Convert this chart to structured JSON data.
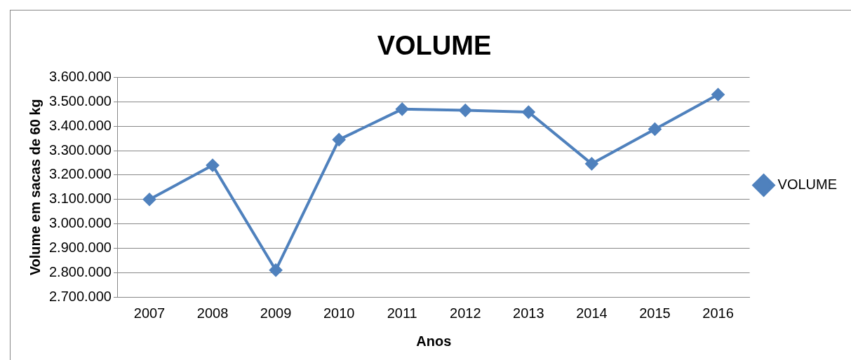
{
  "chart_data": {
    "type": "line",
    "title": "VOLUME",
    "xlabel": "Anos",
    "ylabel": "Volume em sacas de 60 kg",
    "categories": [
      "2007",
      "2008",
      "2009",
      "2010",
      "2011",
      "2012",
      "2013",
      "2014",
      "2015",
      "2016"
    ],
    "series": [
      {
        "name": "VOLUME",
        "color": "#4f81bd",
        "values": [
          3100000,
          3240000,
          2810000,
          3345000,
          3470000,
          3465000,
          3458000,
          3246000,
          3388000,
          3530000
        ]
      }
    ],
    "ylim": [
      2700000,
      3600000
    ],
    "yticks": [
      {
        "value": 2700000,
        "label": "2.700.000"
      },
      {
        "value": 2800000,
        "label": "2.800.000"
      },
      {
        "value": 2900000,
        "label": "2.900.000"
      },
      {
        "value": 3000000,
        "label": "3.000.000"
      },
      {
        "value": 3100000,
        "label": "3.100.000"
      },
      {
        "value": 3200000,
        "label": "3.200.000"
      },
      {
        "value": 3300000,
        "label": "3.300.000"
      },
      {
        "value": 3400000,
        "label": "3.400.000"
      },
      {
        "value": 3500000,
        "label": "3.500.000"
      },
      {
        "value": 3600000,
        "label": "3.600.000"
      }
    ],
    "grid": "y",
    "legend": "right",
    "marker": "diamond",
    "line_style": "solid"
  }
}
